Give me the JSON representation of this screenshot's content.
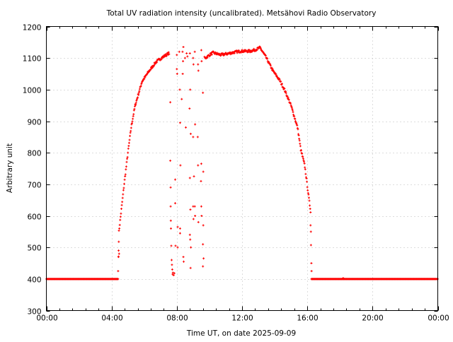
{
  "chart_data": {
    "type": "scatter",
    "title": "Total UV radiation intensity (uncalibrated). Metsähovi Radio Observatory",
    "xlabel": "Time UT, on date 2025-09-09",
    "ylabel": "Arbitrary unit",
    "xlim": [
      0,
      24
    ],
    "ylim": [
      300,
      1200
    ],
    "xticks": [
      0,
      4,
      8,
      12,
      16,
      20,
      24
    ],
    "xtick_labels": [
      "00:00",
      "04:00",
      "08:00",
      "12:00",
      "16:00",
      "20:00",
      "00:00"
    ],
    "yticks": [
      300,
      400,
      500,
      600,
      700,
      800,
      900,
      1000,
      1100,
      1200
    ],
    "ytick_labels": [
      "300",
      "400",
      "500",
      "600",
      "700",
      "800",
      "900",
      "1000",
      "1100",
      "1200"
    ],
    "grid": true,
    "color": "#ff0000",
    "main_curve_hours_values": [
      [
        0,
        400
      ],
      [
        4.4,
        400
      ],
      [
        4.45,
        550
      ],
      [
        4.77,
        700
      ],
      [
        5.0,
        800
      ],
      [
        5.2,
        880
      ],
      [
        5.43,
        947
      ],
      [
        5.86,
        1025
      ],
      [
        6.3,
        1059
      ],
      [
        6.73,
        1088
      ],
      [
        7.16,
        1104
      ],
      [
        7.5,
        1115
      ],
      [
        9.75,
        1100
      ],
      [
        10.2,
        1117
      ],
      [
        10.7,
        1110
      ],
      [
        11.2,
        1115
      ],
      [
        11.9,
        1122
      ],
      [
        12.5,
        1122
      ],
      [
        12.8,
        1126
      ],
      [
        13.1,
        1133
      ],
      [
        13.45,
        1104
      ],
      [
        13.9,
        1059
      ],
      [
        14.3,
        1030
      ],
      [
        14.6,
        1000
      ],
      [
        15.0,
        950
      ],
      [
        15.4,
        880
      ],
      [
        15.6,
        810
      ],
      [
        15.84,
        760
      ],
      [
        16.06,
        670
      ],
      [
        16.2,
        615
      ],
      [
        16.25,
        400
      ],
      [
        24,
        400
      ]
    ],
    "curve_gap_hours": [
      7.55,
      9.7
    ],
    "outliers": [
      [
        4.4,
        425
      ],
      [
        4.42,
        470
      ],
      [
        4.43,
        490
      ],
      [
        4.44,
        518
      ],
      [
        4.46,
        480
      ],
      [
        7.6,
        960
      ],
      [
        7.6,
        775
      ],
      [
        7.62,
        690
      ],
      [
        7.62,
        630
      ],
      [
        7.63,
        585
      ],
      [
        7.64,
        560
      ],
      [
        7.66,
        505
      ],
      [
        7.68,
        460
      ],
      [
        7.7,
        445
      ],
      [
        7.72,
        430
      ],
      [
        7.74,
        415
      ],
      [
        7.76,
        420
      ],
      [
        7.8,
        412
      ],
      [
        7.9,
        715
      ],
      [
        7.9,
        640
      ],
      [
        7.92,
        505
      ],
      [
        7.85,
        418
      ],
      [
        8.0,
        1065
      ],
      [
        8.0,
        1110
      ],
      [
        8.02,
        1050
      ],
      [
        8.05,
        500
      ],
      [
        8.05,
        565
      ],
      [
        8.15,
        1120
      ],
      [
        8.18,
        1000
      ],
      [
        8.2,
        895
      ],
      [
        8.22,
        760
      ],
      [
        8.2,
        560
      ],
      [
        8.2,
        545
      ],
      [
        8.35,
        1120
      ],
      [
        8.38,
        1090
      ],
      [
        8.4,
        1135
      ],
      [
        8.36,
        1050
      ],
      [
        8.3,
        970
      ],
      [
        8.4,
        470
      ],
      [
        8.42,
        455
      ],
      [
        8.5,
        1100
      ],
      [
        8.55,
        880
      ],
      [
        8.6,
        1115
      ],
      [
        8.65,
        1105
      ],
      [
        8.8,
        1115
      ],
      [
        8.82,
        1000
      ],
      [
        8.78,
        940
      ],
      [
        8.85,
        860
      ],
      [
        8.8,
        720
      ],
      [
        8.83,
        620
      ],
      [
        8.8,
        540
      ],
      [
        8.82,
        525
      ],
      [
        8.86,
        500
      ],
      [
        8.84,
        435
      ],
      [
        9.0,
        1100
      ],
      [
        9.02,
        1080
      ],
      [
        9.0,
        850
      ],
      [
        9.05,
        725
      ],
      [
        9.0,
        630
      ],
      [
        9.02,
        590
      ],
      [
        9.1,
        1120
      ],
      [
        9.12,
        890
      ],
      [
        9.1,
        630
      ],
      [
        9.12,
        600
      ],
      [
        9.3,
        1080
      ],
      [
        9.32,
        1060
      ],
      [
        9.28,
        850
      ],
      [
        9.3,
        760
      ],
      [
        9.32,
        580
      ],
      [
        9.5,
        1125
      ],
      [
        9.52,
        1090
      ],
      [
        9.5,
        765
      ],
      [
        9.48,
        710
      ],
      [
        9.5,
        630
      ],
      [
        9.52,
        600
      ],
      [
        9.6,
        990
      ],
      [
        9.62,
        740
      ],
      [
        9.62,
        570
      ],
      [
        9.6,
        510
      ],
      [
        9.64,
        465
      ],
      [
        9.6,
        440
      ],
      [
        16.2,
        570
      ],
      [
        16.22,
        550
      ],
      [
        16.25,
        450
      ],
      [
        16.26,
        425
      ],
      [
        18.2,
        403
      ]
    ]
  }
}
